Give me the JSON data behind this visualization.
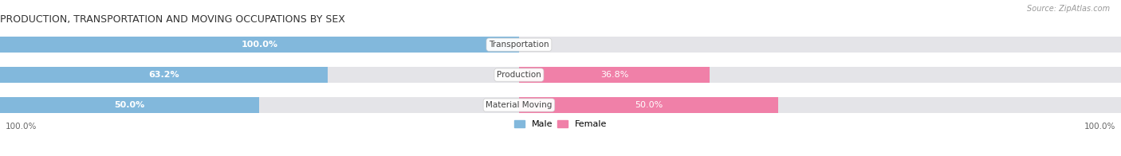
{
  "title": "PRODUCTION, TRANSPORTATION AND MOVING OCCUPATIONS BY SEX",
  "source": "Source: ZipAtlas.com",
  "categories": [
    "Transportation",
    "Production",
    "Material Moving"
  ],
  "male_pct": [
    100.0,
    63.2,
    50.0
  ],
  "female_pct": [
    0.0,
    36.8,
    50.0
  ],
  "male_color": "#82b8dc",
  "female_color": "#f080a8",
  "bar_bg_color": "#e4e4e8",
  "bar_height": 0.52,
  "figsize": [
    14.06,
    1.96
  ],
  "dpi": 100,
  "x_left_label": "100.0%",
  "x_right_label": "100.0%",
  "title_fontsize": 9,
  "source_fontsize": 7,
  "bar_label_fontsize": 8,
  "cat_label_fontsize": 7.5,
  "axis_label_fontsize": 7.5,
  "xlim_left": -108,
  "xlim_right": 108
}
